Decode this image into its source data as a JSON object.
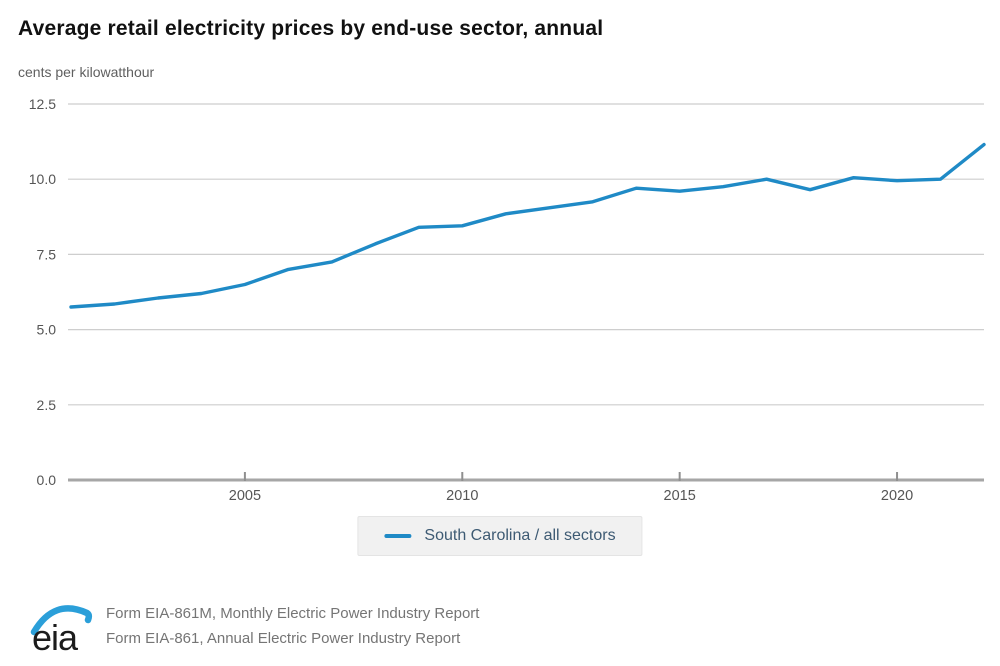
{
  "header": {
    "title": "Average retail electricity prices by end-use sector, annual",
    "subtitle": "cents per kilowatthour"
  },
  "chart_data": {
    "type": "line",
    "title": "Average retail electricity prices by end-use sector, annual",
    "ylabel": "cents per kilowatthour",
    "xlabel": "",
    "grid": true,
    "legend_position": "bottom",
    "ylim": [
      0,
      12.5
    ],
    "yticks": [
      0.0,
      2.5,
      5.0,
      7.5,
      10.0,
      12.5
    ],
    "ytick_labels": [
      "0.0",
      "2.5",
      "5.0",
      "7.5",
      "10.0",
      "12.5"
    ],
    "xticks": [
      2005,
      2010,
      2015,
      2020
    ],
    "xtick_labels": [
      "2005",
      "2010",
      "2015",
      "2020"
    ],
    "x": [
      2001,
      2002,
      2003,
      2004,
      2005,
      2006,
      2007,
      2008,
      2009,
      2010,
      2011,
      2012,
      2013,
      2014,
      2015,
      2016,
      2017,
      2018,
      2019,
      2020,
      2021,
      2022
    ],
    "series": [
      {
        "name": "South Carolina / all sectors",
        "color": "#1f8ac6",
        "values": [
          5.75,
          5.85,
          6.05,
          6.2,
          6.5,
          7.0,
          7.25,
          7.85,
          8.4,
          8.45,
          8.85,
          9.05,
          9.25,
          9.7,
          9.6,
          9.75,
          10.0,
          9.65,
          10.05,
          9.95,
          10.0,
          11.15
        ]
      }
    ]
  },
  "legend": {
    "label": "South Carolina / all sectors"
  },
  "footer": {
    "logo_text": "eia",
    "line1": "Form EIA-861M, Monthly Electric Power Industry Report",
    "line2": "Form EIA-861, Annual Electric Power Industry Report"
  },
  "colors": {
    "line": "#1f8ac6",
    "gridline": "#cecece",
    "axis": "#a6a6a6",
    "tick": "#8f8f8f",
    "tick_label": "#555555",
    "title": "#111111",
    "subtitle": "#5f5f5f",
    "legend_bg": "#f1f1f1",
    "legend_text": "#3d5a73",
    "footer_text": "#757575",
    "logo_arc": "#2b9fd9"
  }
}
